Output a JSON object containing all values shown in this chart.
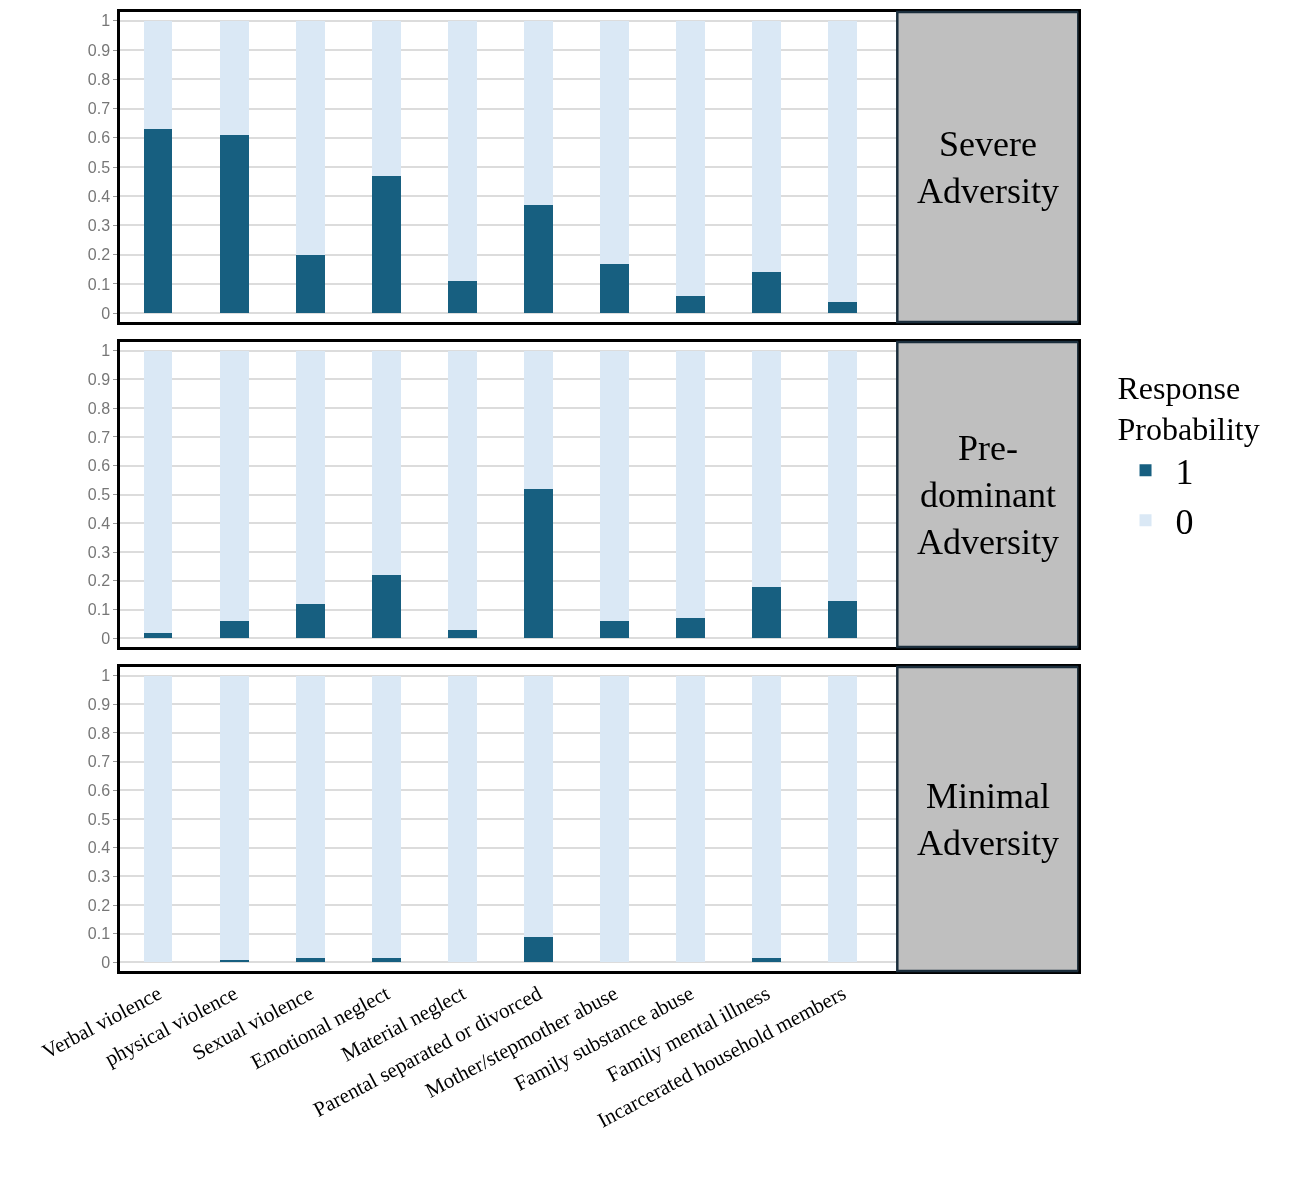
{
  "chart_data": [
    {
      "type": "bar",
      "annotations": [
        "Severe Adversity"
      ],
      "stacked": true,
      "categories": [
        null,
        null,
        null,
        null,
        null,
        null,
        null,
        null,
        null,
        null
      ],
      "series": [
        {
          "name": "1",
          "color": "#175f80",
          "values": [
            0.63,
            0.61,
            0.2,
            0.47,
            0.11,
            0.37,
            0.17,
            0.06,
            0.14,
            0.04
          ]
        },
        {
          "name": "0",
          "color": "#dae8f5",
          "values": [
            0.37,
            0.39,
            0.8,
            0.53,
            0.89,
            0.63,
            0.83,
            0.94,
            0.86,
            0.96
          ]
        }
      ],
      "ylim": [
        -0.03,
        1.03
      ],
      "yticks": [
        0,
        0.1,
        0.2,
        0.3,
        0.4,
        0.5,
        0.6,
        0.7,
        0.8,
        0.9,
        1
      ],
      "grid": "y",
      "tick_labels": "y"
    },
    {
      "type": "bar",
      "annotations": [
        "Pre-dominant Adversity"
      ],
      "stacked": true,
      "legend_title": "Response Probability",
      "legend": "right",
      "categories": [
        null,
        null,
        null,
        null,
        null,
        null,
        null,
        null,
        null,
        null
      ],
      "series": [
        {
          "name": "1",
          "color": "#175f80",
          "values": [
            0.02,
            0.06,
            0.12,
            0.22,
            0.03,
            0.52,
            0.06,
            0.07,
            0.18,
            0.13
          ]
        },
        {
          "name": "0",
          "color": "#dae8f5",
          "values": [
            0.98,
            0.94,
            0.88,
            0.78,
            0.97,
            0.48,
            0.94,
            0.93,
            0.82,
            0.87
          ]
        }
      ],
      "ylim": [
        -0.03,
        1.03
      ],
      "yticks": [
        0,
        0.1,
        0.2,
        0.3,
        0.4,
        0.5,
        0.6,
        0.7,
        0.8,
        0.9,
        1
      ],
      "grid": "y",
      "tick_labels": "y"
    },
    {
      "type": "bar",
      "annotations": [
        "Minimal Adversity"
      ],
      "stacked": true,
      "categories": [
        "Verbal violence",
        "physical violence",
        "Sexual violence",
        "Emotional neglect",
        "Material neglect",
        "Parental separated or divorced",
        "Mother/stepmother abuse",
        "Family substance abuse",
        "Family mental illness",
        "Incarcerated household members"
      ],
      "series": [
        {
          "name": "1",
          "color": "#175f80",
          "values": [
            0,
            0.01,
            0.015,
            0.015,
            0,
            0.09,
            0,
            0,
            0.015,
            0
          ]
        },
        {
          "name": "0",
          "color": "#dae8f5",
          "values": [
            1,
            0.99,
            0.985,
            0.985,
            1,
            0.91,
            1,
            1,
            0.985,
            1
          ]
        }
      ],
      "ylim": [
        -0.03,
        1.03
      ],
      "yticks": [
        0,
        0.1,
        0.2,
        0.3,
        0.4,
        0.5,
        0.6,
        0.7,
        0.8,
        0.9,
        1
      ],
      "grid": "y"
    }
  ]
}
